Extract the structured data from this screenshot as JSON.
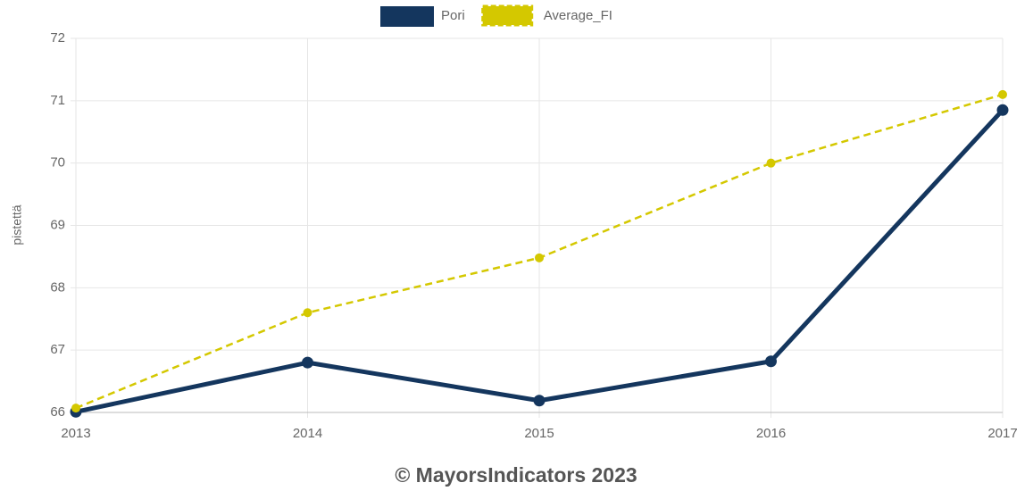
{
  "chart_data": {
    "type": "line",
    "categories": [
      "2013",
      "2014",
      "2015",
      "2016",
      "2017"
    ],
    "series": [
      {
        "name": "Pori",
        "color": "#14365e",
        "values": [
          66.01,
          66.8,
          66.19,
          66.82,
          70.85
        ],
        "dash": false
      },
      {
        "name": "Average_FI",
        "color": "#d4c800",
        "values": [
          66.07,
          67.6,
          68.48,
          70.0,
          71.1
        ],
        "dash": true
      }
    ],
    "ylabel": "pistettä",
    "ylim": [
      66,
      72
    ],
    "yticks": [
      66,
      67,
      68,
      69,
      70,
      71,
      72
    ],
    "grid": true,
    "legend": "top",
    "footer": "© MayorsIndicators 2023"
  }
}
